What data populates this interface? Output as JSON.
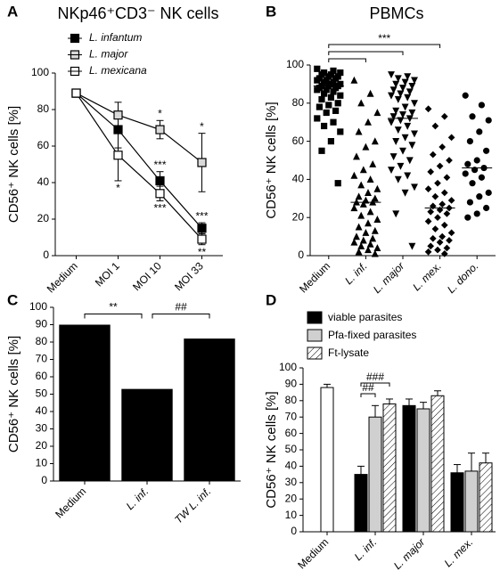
{
  "chart_data": [
    {
      "panel": "A",
      "type": "line",
      "title": "NKp46⁺CD3⁻ NK cells",
      "y_label": "CD56⁺ NK cells [%]",
      "categories": [
        "Medium",
        "MOI 1",
        "MOI 10",
        "MOI 33"
      ],
      "ylim": [
        0,
        100
      ],
      "yticks": [
        0,
        20,
        40,
        60,
        80,
        100
      ],
      "italic_legend": true,
      "series": [
        {
          "name": "L. infantum",
          "color": "#000000",
          "marker_fill": "#000000",
          "values": [
            89,
            69,
            41,
            15
          ],
          "errors": [
            2,
            10,
            5,
            3
          ],
          "annotations": [
            null,
            null,
            "***",
            "***"
          ],
          "annotation_side": "above"
        },
        {
          "name": "L. major",
          "color": "#000000",
          "marker_fill": "#d9d9d9",
          "values": [
            89,
            77,
            69,
            51
          ],
          "errors": [
            2,
            7,
            5,
            16
          ],
          "annotations": [
            null,
            null,
            "*",
            "*"
          ],
          "annotation_side": "above"
        },
        {
          "name": "L. mexicana",
          "color": "#000000",
          "marker_fill": "#ffffff",
          "values": [
            89,
            55,
            34,
            9
          ],
          "errors": [
            2,
            14,
            4,
            3
          ],
          "annotations": [
            null,
            "*",
            "***",
            "**"
          ],
          "annotation_side": "below"
        }
      ]
    },
    {
      "panel": "B",
      "type": "strip",
      "title": "PBMCs",
      "y_label": "CD56⁺ NK cells [%]",
      "categories": [
        "Medium",
        "L. inf.",
        "L. major",
        "L. mex.",
        "L. dono."
      ],
      "italic_categories": [
        false,
        true,
        true,
        true,
        true
      ],
      "ylim": [
        0,
        100
      ],
      "yticks": [
        0,
        20,
        40,
        60,
        80,
        100
      ],
      "median_color": "#e02020",
      "series": [
        {
          "marker": "square",
          "color": "#000000",
          "median": 89,
          "values": [
            98,
            97,
            96,
            96,
            95,
            95,
            94,
            94,
            93,
            93,
            92,
            92,
            91,
            91,
            90,
            90,
            89,
            89,
            89,
            88,
            88,
            87,
            87,
            86,
            85,
            84,
            83,
            82,
            80,
            79,
            78,
            76,
            75,
            72,
            70,
            68,
            65,
            60,
            55,
            38
          ]
        },
        {
          "marker": "triangle",
          "color": "#000000",
          "median": 28,
          "values": [
            92,
            85,
            80,
            75,
            70,
            65,
            60,
            57,
            52,
            48,
            45,
            42,
            40,
            37,
            35,
            33,
            31,
            30,
            29,
            28,
            28,
            27,
            25,
            23,
            21,
            19,
            17,
            15,
            13,
            12,
            10,
            9,
            8,
            7,
            6,
            5,
            4,
            3,
            2,
            1
          ]
        },
        {
          "marker": "triangle-down",
          "color": "#000000",
          "median": 72,
          "values": [
            95,
            94,
            93,
            92,
            91,
            90,
            89,
            88,
            87,
            86,
            85,
            84,
            83,
            82,
            80,
            78,
            76,
            75,
            74,
            73,
            72,
            71,
            70,
            68,
            66,
            64,
            62,
            60,
            58,
            55,
            52,
            50,
            47,
            45,
            42,
            40,
            36,
            33,
            22,
            5
          ]
        },
        {
          "marker": "diamond",
          "color": "#000000",
          "median": 25,
          "values": [
            77,
            73,
            68,
            62,
            57,
            53,
            50,
            47,
            44,
            41,
            38,
            35,
            33,
            31,
            29,
            27,
            26,
            25,
            24,
            23,
            22,
            20,
            18,
            16,
            14,
            12,
            10,
            9,
            8,
            7,
            5,
            4,
            3,
            2,
            1
          ]
        },
        {
          "marker": "circle",
          "color": "#000000",
          "median": 46,
          "values": [
            84,
            79,
            73,
            71,
            65,
            60,
            55,
            50,
            48,
            46,
            45,
            43,
            41,
            38,
            33,
            31,
            28,
            25,
            22,
            20
          ]
        }
      ],
      "comparisons": {
        "label": "***",
        "from": 0,
        "to": [
          1,
          2,
          3
        ]
      }
    },
    {
      "panel": "C",
      "type": "bar",
      "y_label": "CD56⁺ NK cells [%]",
      "categories": [
        "Medium",
        "L. inf.",
        "TW L. inf."
      ],
      "italic_categories": [
        false,
        true,
        true
      ],
      "values": [
        90,
        53,
        82
      ],
      "color": "#000000",
      "ylim": [
        0,
        100
      ],
      "yticks": [
        0,
        10,
        20,
        30,
        40,
        50,
        60,
        70,
        80,
        90,
        100
      ],
      "comparisons": [
        {
          "from": 0,
          "to": 1,
          "label": "**"
        },
        {
          "from": 1,
          "to": 2,
          "label": "##"
        }
      ]
    },
    {
      "panel": "D",
      "type": "grouped_bar",
      "y_label": "CD56⁺ NK cells [%]",
      "categories": [
        "Medium",
        "L. inf.",
        "L. major",
        "L. mex."
      ],
      "italic_categories": [
        false,
        true,
        true,
        true
      ],
      "ylim": [
        0,
        100
      ],
      "yticks": [
        0,
        10,
        20,
        30,
        40,
        50,
        60,
        70,
        80,
        90,
        100
      ],
      "series": [
        {
          "color": "#ffffff",
          "values": [
            88,
            null,
            null,
            null
          ],
          "errors": [
            2,
            null,
            null,
            null
          ]
        },
        {
          "name": "viable parasites",
          "color": "#000000",
          "values": [
            null,
            35,
            77,
            36
          ],
          "errors": [
            null,
            5,
            4,
            5
          ]
        },
        {
          "name": "Pfa-fixed parasites",
          "color": "#d0d0d0",
          "values": [
            null,
            70,
            75,
            37
          ],
          "errors": [
            null,
            7,
            4,
            11
          ]
        },
        {
          "name": "Ft-lysate",
          "color": "#ffffff",
          "hatch": true,
          "values": [
            null,
            78,
            83,
            42
          ],
          "errors": [
            null,
            3,
            3,
            6
          ]
        }
      ],
      "comparisons": [
        {
          "category": 1,
          "from": 1,
          "to": 2,
          "label": "##"
        },
        {
          "category": 1,
          "from": 1,
          "to": 3,
          "label": "###"
        }
      ]
    }
  ]
}
